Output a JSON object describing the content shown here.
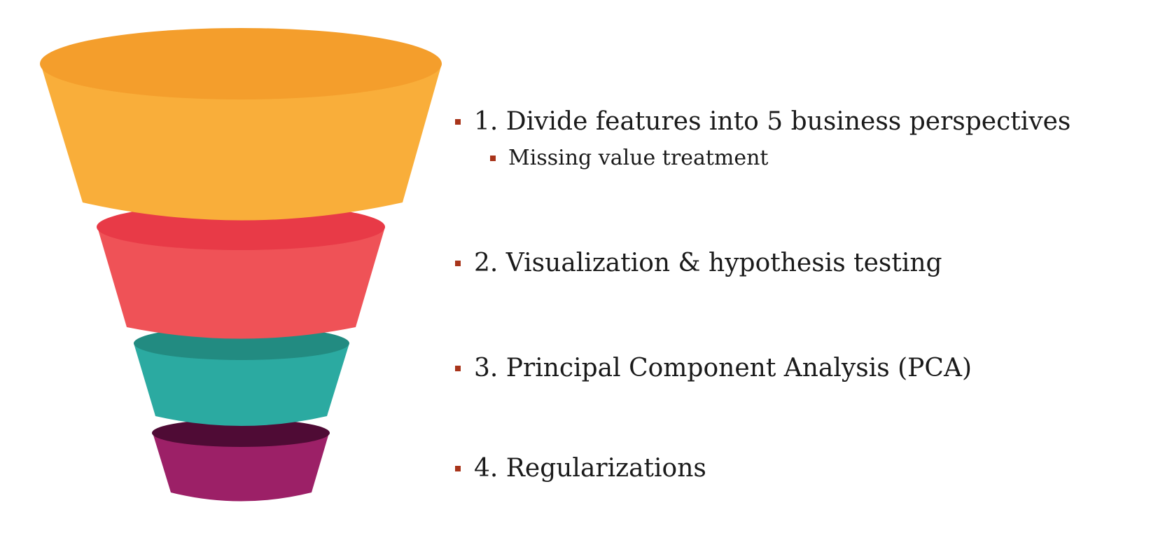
{
  "funnel": {
    "tiers": [
      {
        "name": "tier-1",
        "body_color": "#F9AE3A",
        "rim_color": "#F49E2C"
      },
      {
        "name": "tier-2",
        "body_color": "#EF5257",
        "rim_color": "#E83A47"
      },
      {
        "name": "tier-3",
        "body_color": "#2BAAA1",
        "rim_color": "#228B81"
      },
      {
        "name": "tier-4",
        "body_color": "#9C2067",
        "rim_color": "#4F0B35"
      }
    ]
  },
  "steps": [
    {
      "label": "1. Divide features into 5 business perspectives",
      "sub": "Missing value treatment"
    },
    {
      "label": "2. Visualization & hypothesis testing"
    },
    {
      "label": "3. Principal Component Analysis (PCA)"
    },
    {
      "label": "4. Regularizations"
    }
  ],
  "bullet_color": "#A8341A"
}
